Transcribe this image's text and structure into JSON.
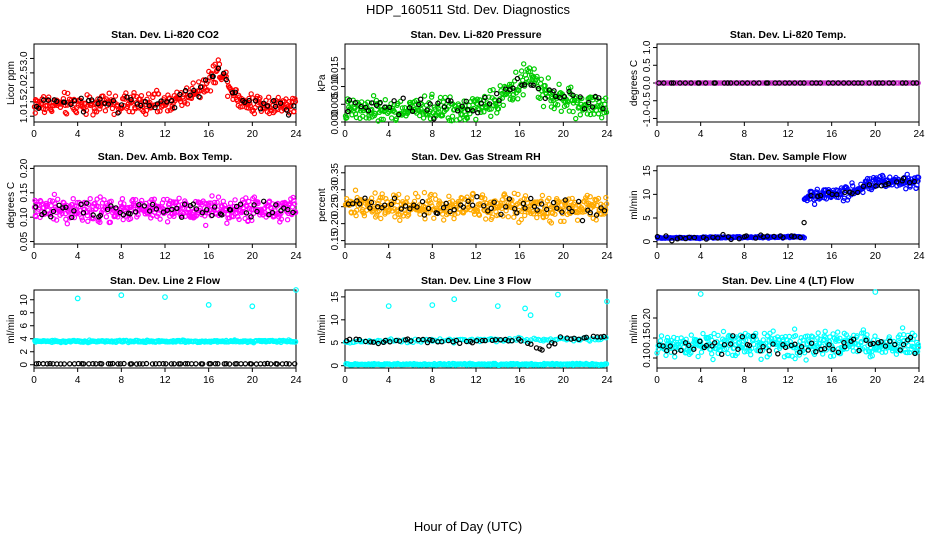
{
  "figure": {
    "title": "HDP_160511  Std. Dev. Diagnostics",
    "xlabel": "Hour of Day (UTC)"
  },
  "chart_data": [
    {
      "type": "scatter",
      "title": "Stan. Dev. Li-820 CO2",
      "ylabel": "Licor ppm",
      "xlim": [
        0,
        24
      ],
      "ylim": [
        0.8,
        3.5
      ],
      "xticks": [
        0,
        4,
        8,
        12,
        16,
        20,
        24
      ],
      "yticks": [
        1.0,
        1.5,
        2.0,
        2.5,
        3.0
      ],
      "ytick_labels": [
        "1.0",
        "1.5",
        "2.0",
        "2.5",
        "3.0"
      ],
      "series": [
        {
          "name": "all",
          "color": "#ff0000",
          "baseline": [
            [
              0,
              1.4
            ],
            [
              12,
              1.45
            ],
            [
              14,
              1.7
            ],
            [
              16,
              2.2
            ],
            [
              17,
              2.7
            ],
            [
              18,
              2.0
            ],
            [
              19,
              1.5
            ],
            [
              24,
              1.35
            ]
          ],
          "spread": 0.55,
          "count": 360
        },
        {
          "name": "black",
          "color": "#000000",
          "baseline": [
            [
              0,
              1.4
            ],
            [
              12,
              1.45
            ],
            [
              14,
              1.7
            ],
            [
              16,
              2.2
            ],
            [
              17,
              2.6
            ],
            [
              18,
              2.0
            ],
            [
              19,
              1.5
            ],
            [
              24,
              1.35
            ]
          ],
          "spread": 0.4,
          "count": 60
        }
      ]
    },
    {
      "type": "scatter",
      "title": "Stan. Dev. Li-820 Pressure",
      "ylabel": "kPa",
      "xlim": [
        0,
        24
      ],
      "ylim": [
        0,
        0.022
      ],
      "xticks": [
        0,
        4,
        8,
        12,
        16,
        20,
        24
      ],
      "yticks": [
        0,
        0.005,
        0.01,
        0.015
      ],
      "ytick_labels": [
        "0.000",
        "0.005",
        "0.010",
        "0.015"
      ],
      "series": [
        {
          "name": "all",
          "color": "#00cc00",
          "baseline": [
            [
              0,
              0.003
            ],
            [
              12,
              0.004
            ],
            [
              14,
              0.006
            ],
            [
              16,
              0.011
            ],
            [
              17,
              0.013
            ],
            [
              18,
              0.009
            ],
            [
              20,
              0.006
            ],
            [
              24,
              0.004
            ]
          ],
          "spread": 0.005,
          "count": 380
        },
        {
          "name": "black",
          "color": "#000000",
          "baseline": [
            [
              0,
              0.004
            ],
            [
              12,
              0.005
            ],
            [
              16,
              0.011
            ],
            [
              18,
              0.009
            ],
            [
              24,
              0.005
            ]
          ],
          "spread": 0.004,
          "count": 60
        }
      ]
    },
    {
      "type": "scatter",
      "title": "Stan. Dev. Li-820 Temp.",
      "ylabel": "degrees C",
      "xlim": [
        0,
        24
      ],
      "ylim": [
        -1.1,
        1.1
      ],
      "xticks": [
        0,
        4,
        8,
        12,
        16,
        20,
        24
      ],
      "yticks": [
        -1.0,
        -0.5,
        0.0,
        0.5,
        1.0
      ],
      "ytick_labels": [
        "-1.0",
        "-0.5",
        "0.0",
        "0.5",
        "1.0"
      ],
      "series": [
        {
          "name": "all",
          "color": "#cc33cc",
          "baseline": [
            [
              0,
              0
            ],
            [
              24,
              0
            ]
          ],
          "spread": 0,
          "count": 200
        },
        {
          "name": "black",
          "color": "#000000",
          "baseline": [
            [
              0,
              0
            ],
            [
              24,
              0
            ]
          ],
          "spread": 0,
          "count": 50
        }
      ]
    },
    {
      "type": "scatter",
      "title": "Stan. Dev. Amb. Box Temp.",
      "ylabel": "degrees C",
      "xlim": [
        0,
        24
      ],
      "ylim": [
        0.045,
        0.205
      ],
      "xticks": [
        0,
        4,
        8,
        12,
        16,
        20,
        24
      ],
      "yticks": [
        0.05,
        0.1,
        0.15,
        0.2
      ],
      "ytick_labels": [
        "0.05",
        "0.10",
        "0.15",
        "0.20"
      ],
      "series": [
        {
          "name": "all",
          "color": "#ff00ff",
          "baseline": [
            [
              0,
              0.115
            ],
            [
              24,
              0.115
            ]
          ],
          "spread": 0.035,
          "count": 420
        },
        {
          "name": "black",
          "color": "#000000",
          "baseline": [
            [
              0,
              0.115
            ],
            [
              24,
              0.115
            ]
          ],
          "spread": 0.025,
          "count": 60
        }
      ]
    },
    {
      "type": "scatter",
      "title": "Stan. Dev. Gas Stream RH",
      "ylabel": "percent",
      "xlim": [
        0,
        24
      ],
      "ylim": [
        0.14,
        0.37
      ],
      "xticks": [
        0,
        4,
        8,
        12,
        16,
        20,
        24
      ],
      "yticks": [
        0.15,
        0.2,
        0.25,
        0.3,
        0.35
      ],
      "ytick_labels": [
        "0.15",
        "0.20",
        "0.25",
        "0.30",
        "0.35"
      ],
      "series": [
        {
          "name": "all",
          "color": "#ffaa00",
          "baseline": [
            [
              0,
              0.255
            ],
            [
              24,
              0.245
            ]
          ],
          "spread": 0.055,
          "count": 420
        },
        {
          "name": "black",
          "color": "#000000",
          "baseline": [
            [
              0,
              0.255
            ],
            [
              24,
              0.245
            ]
          ],
          "spread": 0.045,
          "count": 60
        }
      ]
    },
    {
      "type": "scatter",
      "title": "Stan. Dev. Sample Flow",
      "ylabel": "ml/min",
      "xlim": [
        0,
        24
      ],
      "ylim": [
        -0.5,
        16
      ],
      "xticks": [
        0,
        4,
        8,
        12,
        16,
        20,
        24
      ],
      "yticks": [
        0,
        5,
        10,
        15
      ],
      "ytick_labels": [
        "0",
        "5",
        "10",
        "15"
      ],
      "series": [
        {
          "name": "all-low",
          "color": "#0000ff",
          "x_range": [
            0,
            13.5
          ],
          "baseline": [
            [
              0,
              0.8
            ],
            [
              13.5,
              1.0
            ]
          ],
          "spread": 0.25,
          "count": 160
        },
        {
          "name": "all-high",
          "color": "#0000ff",
          "x_range": [
            13.5,
            24
          ],
          "baseline": [
            [
              13.5,
              9.5
            ],
            [
              18,
              10.5
            ],
            [
              20,
              12.5
            ],
            [
              24,
              13
            ]
          ],
          "spread": 2.2,
          "count": 180
        },
        {
          "name": "black",
          "color": "#000000",
          "x_range": [
            0,
            24
          ],
          "baseline": [
            [
              0,
              0.8
            ],
            [
              13.4,
              1.0
            ],
            [
              13.6,
              9.5
            ],
            [
              18,
              10.5
            ],
            [
              20,
              12
            ],
            [
              24,
              13
            ]
          ],
          "spread": 1.0,
          "count": 50
        }
      ]
    },
    {
      "type": "scatter",
      "title": "Stan. Dev. Line 2 Flow",
      "ylabel": "ml/min",
      "xlim": [
        0,
        24
      ],
      "ylim": [
        -0.5,
        11.5
      ],
      "xticks": [
        0,
        4,
        8,
        12,
        16,
        20,
        24
      ],
      "yticks": [
        0,
        2,
        4,
        6,
        8,
        10
      ],
      "ytick_labels": [
        "0",
        "2",
        "4",
        "6",
        "8",
        "10"
      ],
      "outliers": [
        [
          4,
          10.2
        ],
        [
          8,
          10.7
        ],
        [
          12,
          10.4
        ],
        [
          16,
          9.2
        ],
        [
          20,
          9.0
        ],
        [
          24,
          11.5
        ]
      ],
      "series": [
        {
          "name": "all",
          "color": "#00ffff",
          "baseline": [
            [
              0,
              3.6
            ],
            [
              24,
              3.6
            ]
          ],
          "spread": 0.25,
          "count": 260
        },
        {
          "name": "black",
          "color": "#000000",
          "baseline": [
            [
              0,
              0.15
            ],
            [
              24,
              0.15
            ]
          ],
          "spread": 0.05,
          "count": 70
        }
      ]
    },
    {
      "type": "scatter",
      "title": "Stan. Dev. Line 3 Flow",
      "ylabel": "ml/min",
      "xlim": [
        0,
        24
      ],
      "ylim": [
        -0.5,
        16.5
      ],
      "xticks": [
        0,
        4,
        8,
        12,
        16,
        20,
        24
      ],
      "yticks": [
        0,
        5,
        10,
        15
      ],
      "ytick_labels": [
        "0",
        "5",
        "10",
        "15"
      ],
      "outliers": [
        [
          4,
          13
        ],
        [
          8,
          13.2
        ],
        [
          10,
          14.5
        ],
        [
          14,
          13
        ],
        [
          16.5,
          12.5
        ],
        [
          17,
          11
        ],
        [
          19.5,
          15.5
        ],
        [
          24,
          14
        ]
      ],
      "series": [
        {
          "name": "all-low",
          "color": "#00ffff",
          "baseline": [
            [
              0,
              0.3
            ],
            [
              24,
              0.3
            ]
          ],
          "spread": 0.3,
          "count": 240
        },
        {
          "name": "all-mid",
          "color": "#00ffff",
          "baseline": [
            [
              0,
              5.3
            ],
            [
              24,
              5.8
            ]
          ],
          "spread": 0.6,
          "count": 120
        },
        {
          "name": "black",
          "color": "#000000",
          "baseline": [
            [
              0,
              5.3
            ],
            [
              16,
              5.6
            ],
            [
              18,
              3.5
            ],
            [
              20,
              6.2
            ],
            [
              24,
              6.3
            ]
          ],
          "spread": 0.8,
          "count": 60
        }
      ]
    },
    {
      "type": "scatter",
      "title": "Stan. Dev. Line 4 (LT) Flow",
      "ylabel": "ml/min",
      "xlim": [
        0,
        24
      ],
      "ylim": [
        0.075,
        0.27
      ],
      "xticks": [
        0,
        4,
        8,
        12,
        16,
        20,
        24
      ],
      "yticks": [
        0.1,
        0.15,
        0.2
      ],
      "ytick_labels": [
        "0.10",
        "0.15",
        "0.20"
      ],
      "outliers": [
        [
          4,
          0.26
        ],
        [
          20,
          0.265
        ]
      ],
      "series": [
        {
          "name": "all",
          "color": "#00ffff",
          "baseline": [
            [
              0,
              0.135
            ],
            [
              24,
              0.135
            ]
          ],
          "spread": 0.045,
          "count": 420
        },
        {
          "name": "black",
          "color": "#000000",
          "baseline": [
            [
              0,
              0.13
            ],
            [
              24,
              0.13
            ]
          ],
          "spread": 0.03,
          "count": 60
        }
      ]
    }
  ]
}
